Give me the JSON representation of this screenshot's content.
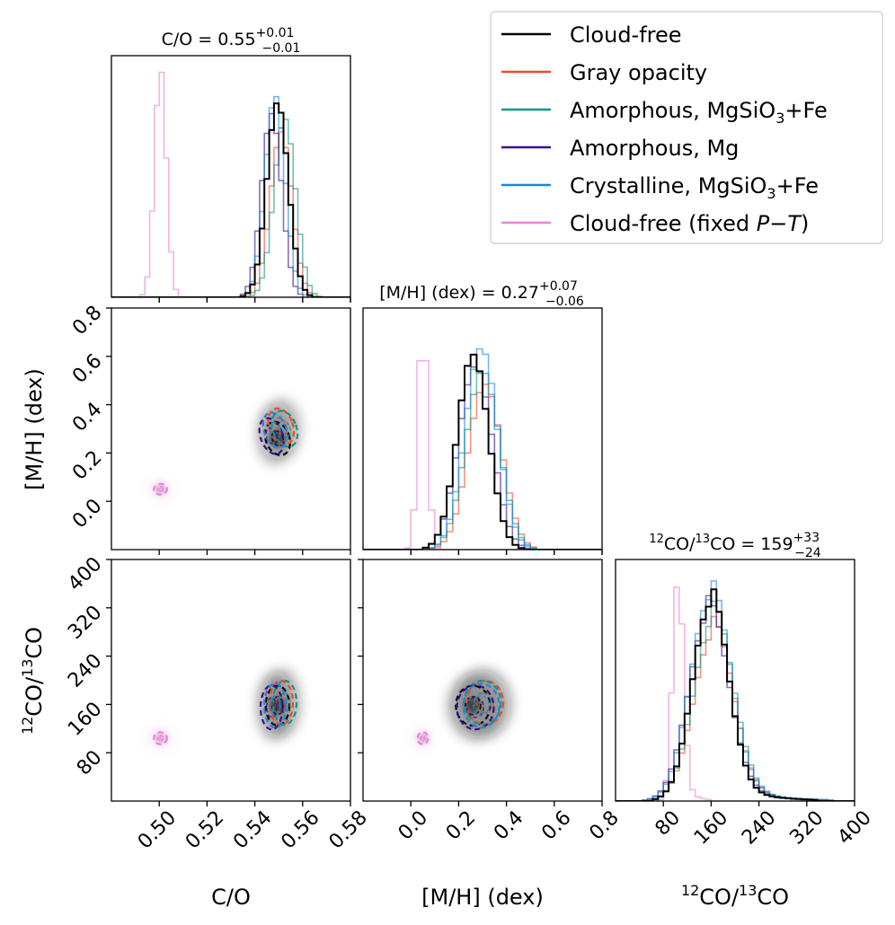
{
  "chart_data": {
    "type": "corner",
    "parameters": [
      {
        "key": "co",
        "label": "C/O",
        "range": [
          0.48,
          0.58
        ],
        "ticks": [
          0.5,
          0.52,
          0.54,
          0.56,
          0.58
        ],
        "tick_labels": [
          "0.50",
          "0.52",
          "0.54",
          "0.56",
          "0.58"
        ],
        "median": "0.55",
        "err_plus": "+0.01",
        "err_minus": "−0.01",
        "title_prefix": "C/O = "
      },
      {
        "key": "mh",
        "label": "[M/H] (dex)",
        "range": [
          -0.2,
          0.8
        ],
        "ticks": [
          0.0,
          0.2,
          0.4,
          0.6,
          0.8
        ],
        "tick_labels": [
          "0.0",
          "0.2",
          "0.4",
          "0.6",
          "0.8"
        ],
        "median": "0.27",
        "err_plus": "+0.07",
        "err_minus": "−0.06",
        "title_prefix": "[M/H] (dex) = "
      },
      {
        "key": "iso",
        "label_base": "CO/",
        "label_sup1": "12",
        "label_sup2": "13",
        "label_end": "CO",
        "range": [
          0,
          400
        ],
        "ticks": [
          80,
          160,
          240,
          320,
          400
        ],
        "tick_labels": [
          "80",
          "160",
          "240",
          "320",
          "400"
        ],
        "median": "159",
        "err_plus": "+33",
        "err_minus": "−24",
        "title_suffix": " = "
      }
    ],
    "series": [
      {
        "name": "Cloud-free",
        "color": "#000000",
        "co": {
          "mean": 0.5495,
          "sd": 0.0045
        },
        "mh": {
          "mean": 0.26,
          "sd": 0.065
        },
        "iso": {
          "mean": 158,
          "sd": 30
        },
        "corr_co_mh": 0.5,
        "hist_peak": 0.85
      },
      {
        "name": "Gray opacity",
        "color": "#ee4a2b",
        "co": {
          "mean": 0.551,
          "sd": 0.0045
        },
        "mh": {
          "mean": 0.31,
          "sd": 0.07
        },
        "iso": {
          "mean": 163,
          "sd": 33
        },
        "corr_co_mh": 0.5,
        "hist_peak": 0.72
      },
      {
        "name": "Amorphous, MgSiO₃+Fe",
        "color": "#119886",
        "co": {
          "mean": 0.5525,
          "sd": 0.0045
        },
        "mh": {
          "mean": 0.3,
          "sd": 0.07
        },
        "iso": {
          "mean": 163,
          "sd": 33
        },
        "corr_co_mh": 0.5,
        "hist_peak": 0.78
      },
      {
        "name": "Amorphous, Mg",
        "color": "#3a0f8f",
        "co": {
          "mean": 0.547,
          "sd": 0.0042
        },
        "mh": {
          "mean": 0.27,
          "sd": 0.07
        },
        "iso": {
          "mean": 155,
          "sd": 33
        },
        "corr_co_mh": 0.5,
        "hist_peak": 0.8
      },
      {
        "name": "Crystalline, MgSiO₃+Fe",
        "color": "#1f86dc",
        "co": {
          "mean": 0.5485,
          "sd": 0.0042
        },
        "mh": {
          "mean": 0.295,
          "sd": 0.068
        },
        "iso": {
          "mean": 158,
          "sd": 33
        },
        "corr_co_mh": 0.5,
        "hist_peak": 0.88
      },
      {
        "name": "Cloud-free (fixed P−T)",
        "color": "#e884d4",
        "co": {
          "mean": 0.5005,
          "sd": 0.0025
        },
        "mh": {
          "mean": 0.05,
          "sd": 0.02
        },
        "iso": {
          "mean": 104,
          "sd": 9
        },
        "corr_co_mh": 0.2,
        "hist_peak": 1.0
      }
    ],
    "legend": {
      "placement": "top-right",
      "entries": [
        {
          "text": "Cloud-free",
          "color": "#000000"
        },
        {
          "text": "Gray opacity",
          "color": "#ee4a2b"
        },
        {
          "text": "Amorphous, MgSiO",
          "sub": "3",
          "after": "+Fe",
          "color": "#119886"
        },
        {
          "text": "Amorphous, Mg",
          "color": "#3a0f8f"
        },
        {
          "text": "Crystalline, MgSiO",
          "sub": "3",
          "after": "+Fe",
          "color": "#1f86dc"
        },
        {
          "text": "Cloud-free (fixed ",
          "italic": "P−T",
          "after": ")",
          "color": "#e884d4"
        }
      ]
    }
  }
}
